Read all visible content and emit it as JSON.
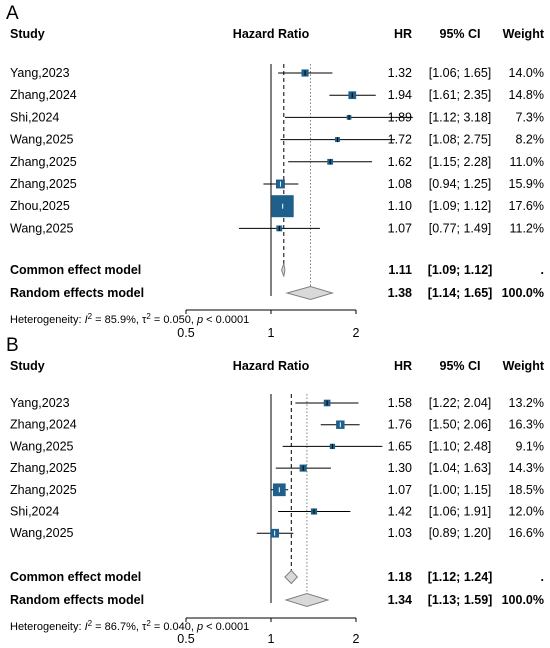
{
  "headers": {
    "study": "Study",
    "plot": "Hazard Ratio",
    "hr": "HR",
    "ci": "95% CI",
    "weight": "Weight"
  },
  "chart_data": [
    {
      "type": "forest",
      "panel": "A",
      "x_scale": "log",
      "xlim": [
        0.5,
        2
      ],
      "x_ticks": [
        "0.5",
        "1",
        "2"
      ],
      "reference_line": 1,
      "studies": [
        {
          "name": "Yang,2023",
          "hr": 1.32,
          "lower": 1.06,
          "upper": 1.65,
          "hr_text": "1.32",
          "ci_text": "[1.06; 1.65]",
          "weight_text": "14.0%",
          "weight": 14.0
        },
        {
          "name": "Zhang,2024",
          "hr": 1.94,
          "lower": 1.61,
          "upper": 2.35,
          "hr_text": "1.94",
          "ci_text": "[1.61; 2.35]",
          "weight_text": "14.8%",
          "weight": 14.8
        },
        {
          "name": "Shi,2024",
          "hr": 1.89,
          "lower": 1.12,
          "upper": 3.18,
          "hr_text": "1.89",
          "ci_text": "[1.12; 3.18]",
          "weight_text": "7.3%",
          "weight": 7.3
        },
        {
          "name": "Wang,2025",
          "hr": 1.72,
          "lower": 1.08,
          "upper": 2.75,
          "hr_text": "1.72",
          "ci_text": "[1.08; 2.75]",
          "weight_text": "8.2%",
          "weight": 8.2
        },
        {
          "name": "Zhang,2025",
          "hr": 1.62,
          "lower": 1.15,
          "upper": 2.28,
          "hr_text": "1.62",
          "ci_text": "[1.15; 2.28]",
          "weight_text": "11.0%",
          "weight": 11.0
        },
        {
          "name": "Zhang,2025",
          "hr": 1.08,
          "lower": 0.94,
          "upper": 1.25,
          "hr_text": "1.08",
          "ci_text": "[0.94; 1.25]",
          "weight_text": "15.9%",
          "weight": 15.9
        },
        {
          "name": "Zhou,2025",
          "hr": 1.1,
          "lower": 1.09,
          "upper": 1.12,
          "hr_text": "1.10",
          "ci_text": "[1.09; 1.12]",
          "weight_text": "17.6%",
          "weight": 17.6
        },
        {
          "name": "Wang,2025",
          "hr": 1.07,
          "lower": 0.77,
          "upper": 1.49,
          "hr_text": "1.07",
          "ci_text": "[0.77; 1.49]",
          "weight_text": "11.2%",
          "weight": 11.2
        }
      ],
      "pooled": [
        {
          "name": "Common effect model",
          "hr": 1.11,
          "lower": 1.09,
          "upper": 1.12,
          "hr_text": "1.11",
          "ci_text": "[1.09; 1.12]",
          "weight_text": "."
        },
        {
          "name": "Random effects model",
          "hr": 1.38,
          "lower": 1.14,
          "upper": 1.65,
          "hr_text": "1.38",
          "ci_text": "[1.14; 1.65]",
          "weight_text": "100.0%"
        }
      ],
      "heterogeneity": {
        "prefix": "Heterogeneity: ",
        "i2": " = 85.9%, ",
        "tau2": " = 0.050, ",
        "p": " < 0.0001"
      }
    },
    {
      "type": "forest",
      "panel": "B",
      "x_scale": "log",
      "xlim": [
        0.5,
        2
      ],
      "x_ticks": [
        "0.5",
        "1",
        "2"
      ],
      "reference_line": 1,
      "studies": [
        {
          "name": "Yang,2023",
          "hr": 1.58,
          "lower": 1.22,
          "upper": 2.04,
          "hr_text": "1.58",
          "ci_text": "[1.22; 2.04]",
          "weight_text": "13.2%",
          "weight": 13.2
        },
        {
          "name": "Zhang,2024",
          "hr": 1.76,
          "lower": 1.5,
          "upper": 2.06,
          "hr_text": "1.76",
          "ci_text": "[1.50; 2.06]",
          "weight_text": "16.3%",
          "weight": 16.3
        },
        {
          "name": "Wang,2025",
          "hr": 1.65,
          "lower": 1.1,
          "upper": 2.48,
          "hr_text": "1.65",
          "ci_text": "[1.10; 2.48]",
          "weight_text": "9.1%",
          "weight": 9.1
        },
        {
          "name": "Zhang,2025",
          "hr": 1.3,
          "lower": 1.04,
          "upper": 1.63,
          "hr_text": "1.30",
          "ci_text": "[1.04; 1.63]",
          "weight_text": "14.3%",
          "weight": 14.3
        },
        {
          "name": "Zhang,2025",
          "hr": 1.07,
          "lower": 1.0,
          "upper": 1.15,
          "hr_text": "1.07",
          "ci_text": "[1.00; 1.15]",
          "weight_text": "18.5%",
          "weight": 18.5
        },
        {
          "name": "Shi,2024",
          "hr": 1.42,
          "lower": 1.06,
          "upper": 1.91,
          "hr_text": "1.42",
          "ci_text": "[1.06; 1.91]",
          "weight_text": "12.0%",
          "weight": 12.0
        },
        {
          "name": "Wang,2025",
          "hr": 1.03,
          "lower": 0.89,
          "upper": 1.2,
          "hr_text": "1.03",
          "ci_text": "[0.89; 1.20]",
          "weight_text": "16.6%",
          "weight": 16.6
        }
      ],
      "pooled": [
        {
          "name": "Common effect model",
          "hr": 1.18,
          "lower": 1.12,
          "upper": 1.24,
          "hr_text": "1.18",
          "ci_text": "[1.12; 1.24]",
          "weight_text": "."
        },
        {
          "name": "Random effects model",
          "hr": 1.34,
          "lower": 1.13,
          "upper": 1.59,
          "hr_text": "1.34",
          "ci_text": "[1.13; 1.59]",
          "weight_text": "100.0%"
        }
      ],
      "heterogeneity": {
        "prefix": "Heterogeneity: ",
        "i2": " = 86.7%, ",
        "tau2": " = 0.040, ",
        "p": " < 0.0001"
      }
    }
  ],
  "colors": {
    "square": "#1f5f8b",
    "diamond_fill": "#d9d9d9",
    "diamond_stroke": "#808080",
    "line": "#000000",
    "dotted": "#808080"
  }
}
